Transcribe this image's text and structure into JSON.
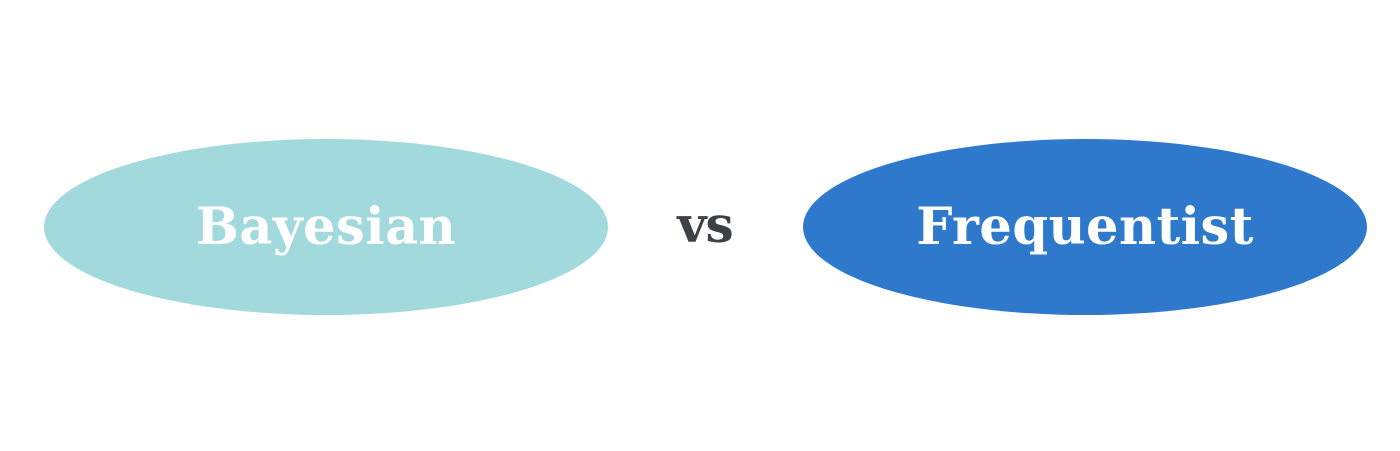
{
  "left_node": {
    "label": "Bayesian",
    "fill_color": "#a2d9dc",
    "text_color": "#ffffff"
  },
  "connector": {
    "label": "vs",
    "text_color": "#3b4144"
  },
  "right_node": {
    "label": "Frequentist",
    "fill_color": "#2e79cb",
    "text_color": "#ffffff"
  },
  "background_color": "#ffffff"
}
